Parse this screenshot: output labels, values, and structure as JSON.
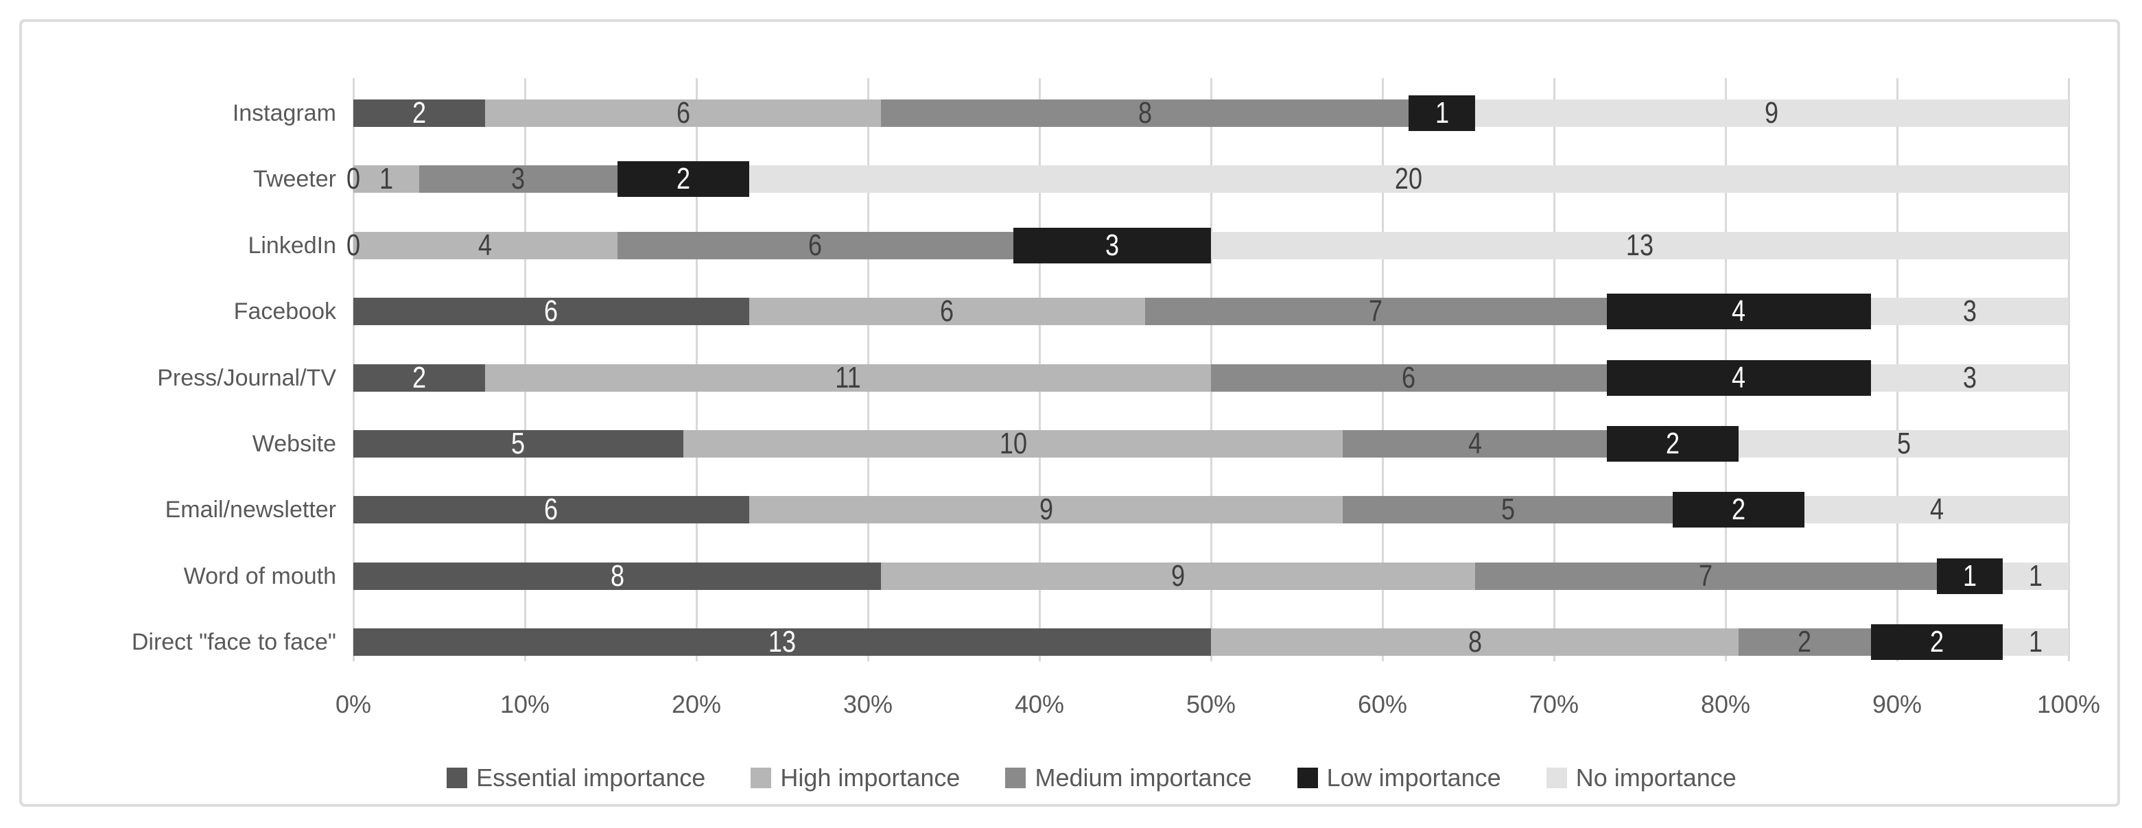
{
  "chart_data": {
    "type": "bar",
    "stacked": true,
    "percent_stacked": true,
    "orientation": "horizontal",
    "title": "",
    "xlabel": "",
    "ylabel": "",
    "categories": [
      "Instagram",
      "Tweeter",
      "LinkedIn",
      "Facebook",
      "Press/Journal/TV",
      "Website",
      "Email/newsletter",
      "Word of mouth",
      "Direct \"face to face\""
    ],
    "series": [
      {
        "name": "Essential importance",
        "color": "#575757",
        "label_color": "#ffffff",
        "values": [
          2,
          0,
          0,
          6,
          2,
          5,
          6,
          8,
          13
        ]
      },
      {
        "name": "High importance",
        "color": "#b6b6b6",
        "label_color": "#3f3f3f",
        "values": [
          6,
          1,
          4,
          6,
          11,
          10,
          9,
          9,
          8
        ]
      },
      {
        "name": "Medium importance",
        "color": "#8a8a8a",
        "label_color": "#3f3f3f",
        "values": [
          8,
          3,
          6,
          7,
          6,
          4,
          5,
          7,
          2
        ]
      },
      {
        "name": "Low importance",
        "color": "#1d1d1d",
        "label_color": "#ffffff",
        "values": [
          1,
          2,
          3,
          4,
          4,
          2,
          2,
          1,
          2
        ]
      },
      {
        "name": "No importance",
        "color": "#e2e2e2",
        "label_color": "#3f3f3f",
        "values": [
          9,
          20,
          13,
          3,
          3,
          5,
          4,
          1,
          1
        ]
      }
    ],
    "row_total": 26,
    "x_axis": {
      "min": 0,
      "max": 100,
      "ticks": [
        "0%",
        "10%",
        "20%",
        "30%",
        "40%",
        "50%",
        "60%",
        "70%",
        "80%",
        "90%",
        "100%"
      ],
      "gridlines": true
    },
    "legend_position": "bottom",
    "style": {
      "gridline_color": "#d9d9d9",
      "frame_border_color": "#dcdcdc",
      "axis_text_color": "#595959",
      "category_text_color": "#595959",
      "legend_text_color": "#595959",
      "background_color": "#ffffff"
    }
  }
}
